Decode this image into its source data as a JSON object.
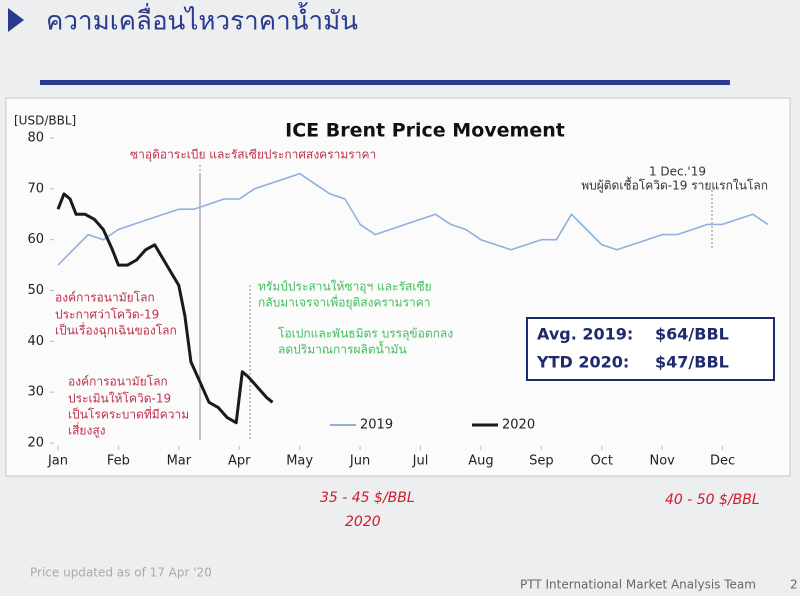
{
  "header": {
    "title": "ความเคลื่อนไหวราคาน้ำมัน"
  },
  "chart_data": {
    "type": "line",
    "title": "ICE Brent Price Movement",
    "y_label": "[USD/BBL]",
    "xlim": [
      0,
      12
    ],
    "xticks": [
      {
        "value": 0,
        "label": "Jan"
      },
      {
        "value": 1,
        "label": "Feb"
      },
      {
        "value": 2,
        "label": "Mar"
      },
      {
        "value": 3,
        "label": "Apr"
      },
      {
        "value": 4,
        "label": "May"
      },
      {
        "value": 5,
        "label": "Jun"
      },
      {
        "value": 6,
        "label": "Jul"
      },
      {
        "value": 7,
        "label": "Aug"
      },
      {
        "value": 8,
        "label": "Sep"
      },
      {
        "value": 9,
        "label": "Oct"
      },
      {
        "value": 10,
        "label": "Nov"
      },
      {
        "value": 11,
        "label": "Dec"
      }
    ],
    "ylim": [
      20,
      80
    ],
    "yticks": [
      20,
      30,
      40,
      50,
      60,
      70,
      80
    ],
    "grid": false,
    "legend": "bottom",
    "series": [
      {
        "name": "2019",
        "color": "#8fb1dc",
        "x": [
          0,
          0.25,
          0.5,
          0.75,
          1,
          1.25,
          1.5,
          1.75,
          2,
          2.25,
          2.5,
          2.75,
          3,
          3.25,
          3.5,
          3.75,
          4,
          4.25,
          4.5,
          4.75,
          5,
          5.25,
          5.5,
          5.75,
          6,
          6.25,
          6.5,
          6.75,
          7,
          7.25,
          7.5,
          7.75,
          8,
          8.25,
          8.5,
          8.75,
          9,
          9.25,
          9.5,
          9.75,
          10,
          10.25,
          10.5,
          10.75,
          11,
          11.25,
          11.5,
          11.75
        ],
        "values": [
          55,
          58,
          61,
          60,
          62,
          63,
          64,
          65,
          66,
          66,
          67,
          68,
          68,
          70,
          71,
          72,
          73,
          71,
          69,
          68,
          63,
          61,
          62,
          63,
          64,
          65,
          63,
          62,
          60,
          59,
          58,
          59,
          60,
          60,
          65,
          62,
          59,
          58,
          59,
          60,
          61,
          61,
          62,
          63,
          63,
          64,
          65,
          63
        ]
      },
      {
        "name": "2020",
        "color": "#1a1a1a",
        "x": [
          0,
          0.1,
          0.2,
          0.3,
          0.45,
          0.6,
          0.75,
          0.9,
          1,
          1.15,
          1.3,
          1.45,
          1.6,
          1.75,
          1.9,
          2,
          2.1,
          2.2,
          2.35,
          2.5,
          2.65,
          2.8,
          2.95,
          3.05,
          3.15,
          3.3,
          3.45,
          3.55
        ],
        "values": [
          66,
          69,
          68,
          65,
          65,
          64,
          62,
          58,
          55,
          55,
          56,
          58,
          59,
          56,
          53,
          51,
          45,
          36,
          32,
          28,
          27,
          25,
          24,
          34,
          33,
          31,
          29,
          28
        ]
      }
    ],
    "annotations": [
      {
        "text": "ซาอุดิอาระเบีย และรัสเซียประกาศสงครามราคา",
        "color": "#c0304a"
      },
      {
        "text": "1 Dec.'19",
        "color": "#333333"
      },
      {
        "text": "พบผู้ติดเชื้อโควิด-19 รายแรกในโลก",
        "color": "#333333"
      },
      {
        "text": "องค์การอนามัยโลก",
        "color": "#c0304a"
      },
      {
        "text": "ประกาศว่าโควิด-19",
        "color": "#c0304a"
      },
      {
        "text": "เป็นเรื่องฉุกเฉินของโลก",
        "color": "#c0304a"
      },
      {
        "text": "องค์การอนามัยโลก",
        "color": "#c0304a"
      },
      {
        "text": "ประเมินให้โควิด-19",
        "color": "#c0304a"
      },
      {
        "text": "เป็นโรคระบาดที่มีความ",
        "color": "#c0304a"
      },
      {
        "text": "เสี่ยงสูง",
        "color": "#c0304a"
      },
      {
        "text": "ทรัมป์ประสานให้ซาอุฯ และรัสเซีย",
        "color": "#3fbf5a"
      },
      {
        "text": "กลับมาเจรจาเพื่อยุติสงครามราคา",
        "color": "#3fbf5a"
      },
      {
        "text": "โอเปกและพันธมิตร บรรลุข้อตกลง",
        "color": "#3fbf5a"
      },
      {
        "text": "ลดปริมาณการผลิตน้ำมัน",
        "color": "#3fbf5a"
      }
    ],
    "summary": [
      {
        "label": "Avg. 2019:",
        "value": "$64/BBL"
      },
      {
        "label": "YTD 2020:",
        "value": "$47/BBL"
      }
    ]
  },
  "handwriting": [
    "35 - 45 $/BBL",
    "2020",
    "40 - 50 $/BBL"
  ],
  "footer": {
    "note": "Price updated as of 17 Apr '20",
    "team": "PTT International Market Analysis Team",
    "page": "2"
  }
}
